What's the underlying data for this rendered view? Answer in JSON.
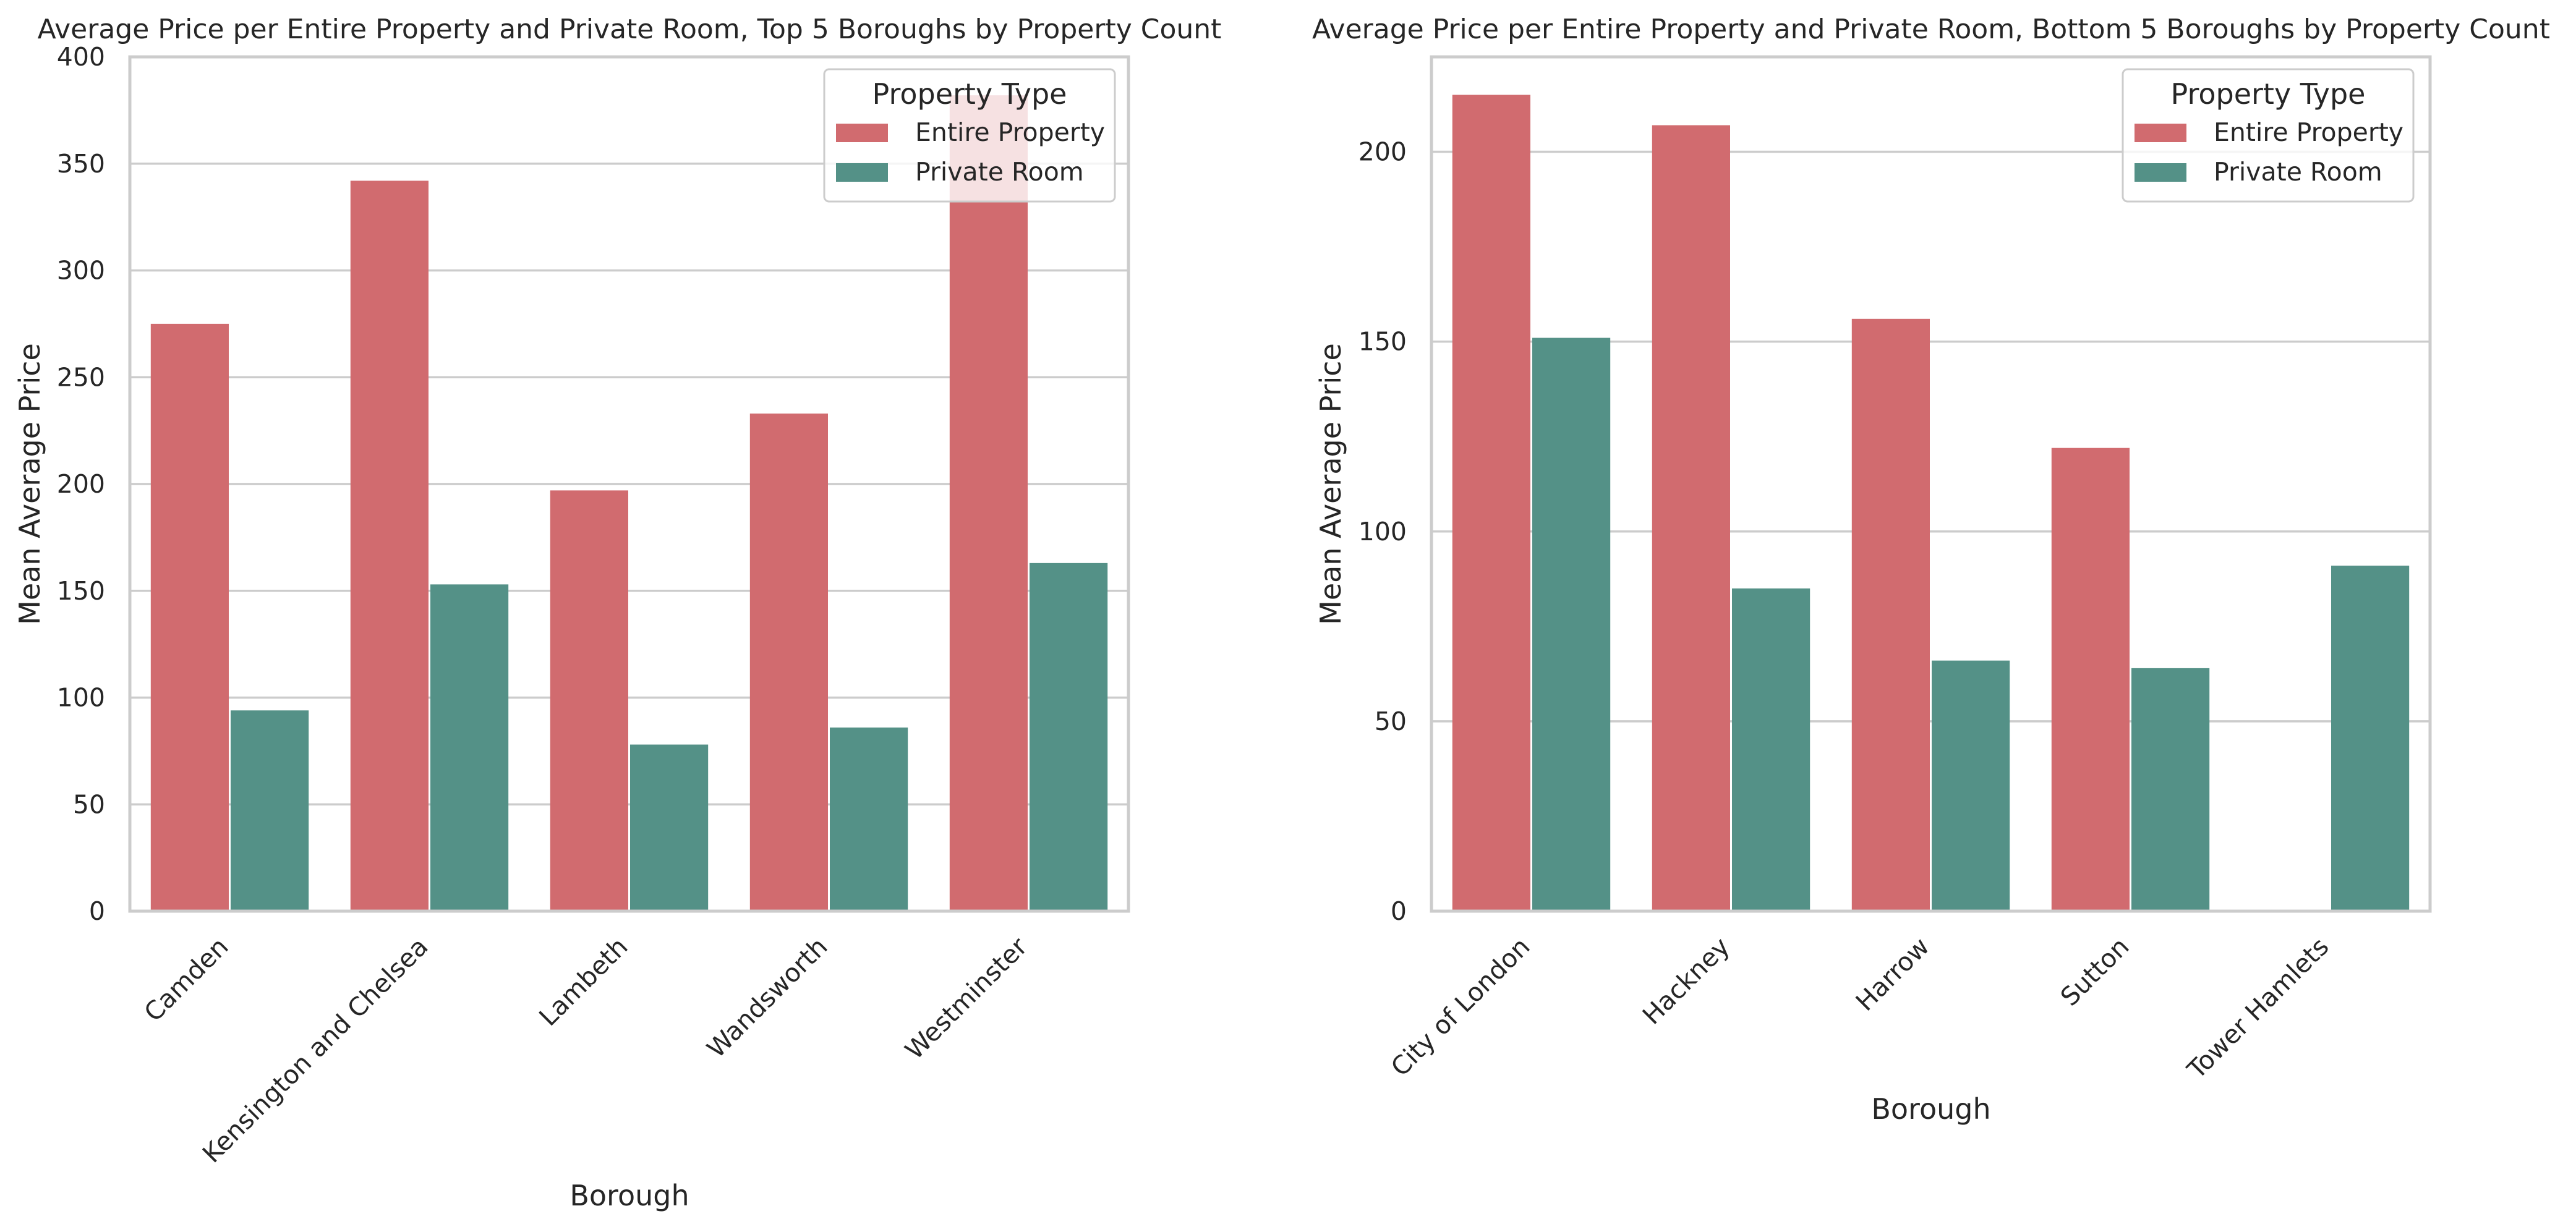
{
  "chart_data": [
    {
      "type": "bar",
      "title": "Average Price per Entire Property and Private Room, Top 5 Boroughs by Property Count",
      "xlabel": "Borough",
      "ylabel": "Mean Average Price",
      "ylim": [
        0,
        400
      ],
      "yticks": [
        0,
        50,
        100,
        150,
        200,
        250,
        300,
        350,
        400
      ],
      "grid": true,
      "legend_placement": "top-right",
      "legend_title": "Property Type",
      "categories": [
        "Camden",
        "Kensington and Chelsea",
        "Lambeth",
        "Wandsworth",
        "Westminster"
      ],
      "series": [
        {
          "name": "Entire Property",
          "color": "#d16b6f",
          "values": [
            275,
            342,
            197,
            233,
            382
          ]
        },
        {
          "name": "Private Room",
          "color": "#549187",
          "values": [
            94,
            153,
            78,
            86,
            163
          ]
        }
      ]
    },
    {
      "type": "bar",
      "title": "Average Price per Entire Property and Private Room, Bottom 5 Boroughs by Property Count",
      "xlabel": "Borough",
      "ylabel": "Mean Average Price",
      "ylim": [
        0,
        225
      ],
      "yticks": [
        0,
        50,
        100,
        150,
        200
      ],
      "grid": true,
      "legend_placement": "top-right",
      "legend_title": "Property Type",
      "categories": [
        "City of London",
        "Hackney",
        "Harrow",
        "Sutton",
        "Tower Hamlets"
      ],
      "series": [
        {
          "name": "Entire Property",
          "color": "#d16b6f",
          "values": [
            215,
            207,
            156,
            122,
            null
          ]
        },
        {
          "name": "Private Room",
          "color": "#549187",
          "values": [
            151,
            85,
            66,
            64,
            91
          ]
        }
      ]
    }
  ]
}
